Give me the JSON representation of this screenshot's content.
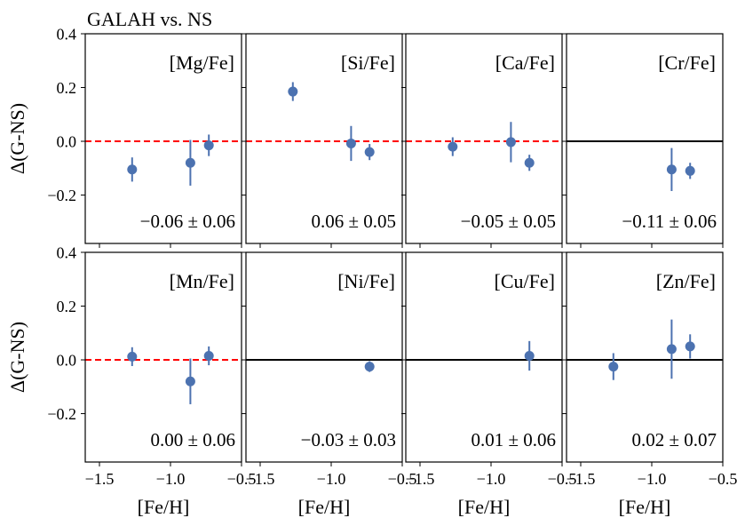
{
  "figure_title": "GALAH vs. NS",
  "chart_data": {
    "type": "scatter",
    "title": "GALAH vs. NS",
    "xlabel": "[Fe/H]",
    "ylabel": "Δ(G-NS)",
    "xlim": [
      -1.6,
      -0.5
    ],
    "ylim": [
      -0.38,
      0.4
    ],
    "x_ticks": [
      -1.5,
      -1.0,
      -0.5
    ],
    "x_tick_labels": [
      "−1.5",
      "−1.0",
      "−0.5"
    ],
    "y_ticks": [
      -0.2,
      0.0,
      0.2,
      0.4
    ],
    "y_tick_labels": [
      "−0.2",
      "0.0",
      "0.2",
      "0.4"
    ],
    "marker_color": "#4c72b0",
    "zero_line_colors": {
      "dashed": "#ff0000",
      "solid": "#000000"
    },
    "panels": [
      {
        "element": "[Mg/Fe]",
        "summary": "−0.06 ± 0.06",
        "zero_line": "dashed",
        "points": [
          {
            "x": -1.27,
            "y": -0.105,
            "err": 0.045
          },
          {
            "x": -0.86,
            "y": -0.08,
            "err": 0.085
          },
          {
            "x": -0.73,
            "y": -0.015,
            "err": 0.04
          }
        ]
      },
      {
        "element": "[Si/Fe]",
        "summary": "0.06 ± 0.05",
        "zero_line": "dashed",
        "points": [
          {
            "x": -1.27,
            "y": 0.185,
            "err": 0.035
          },
          {
            "x": -0.86,
            "y": -0.008,
            "err": 0.065
          },
          {
            "x": -0.73,
            "y": -0.04,
            "err": 0.03
          }
        ]
      },
      {
        "element": "[Ca/Fe]",
        "summary": "−0.05 ± 0.05",
        "zero_line": "dashed",
        "points": [
          {
            "x": -1.27,
            "y": -0.02,
            "err": 0.035
          },
          {
            "x": -0.86,
            "y": -0.003,
            "err": 0.075
          },
          {
            "x": -0.73,
            "y": -0.08,
            "err": 0.03
          }
        ]
      },
      {
        "element": "[Cr/Fe]",
        "summary": "−0.11 ± 0.06",
        "zero_line": "solid",
        "points": [
          {
            "x": -0.86,
            "y": -0.105,
            "err": 0.08
          },
          {
            "x": -0.73,
            "y": -0.11,
            "err": 0.03
          }
        ]
      },
      {
        "element": "[Mn/Fe]",
        "summary": "0.00 ± 0.06",
        "zero_line": "dashed",
        "points": [
          {
            "x": -1.27,
            "y": 0.012,
            "err": 0.035
          },
          {
            "x": -0.86,
            "y": -0.08,
            "err": 0.085
          },
          {
            "x": -0.73,
            "y": 0.015,
            "err": 0.035
          }
        ]
      },
      {
        "element": "[Ni/Fe]",
        "summary": "−0.03 ± 0.03",
        "zero_line": "solid",
        "points": [
          {
            "x": -0.73,
            "y": -0.025,
            "err": 0.02
          }
        ]
      },
      {
        "element": "[Cu/Fe]",
        "summary": "0.01 ± 0.06",
        "zero_line": "solid",
        "points": [
          {
            "x": -0.73,
            "y": 0.015,
            "err": 0.055
          }
        ]
      },
      {
        "element": "[Zn/Fe]",
        "summary": "0.02 ± 0.07",
        "zero_line": "solid",
        "points": [
          {
            "x": -1.27,
            "y": -0.025,
            "err": 0.05
          },
          {
            "x": -0.86,
            "y": 0.04,
            "err": 0.11
          },
          {
            "x": -0.73,
            "y": 0.05,
            "err": 0.045
          }
        ]
      }
    ]
  }
}
